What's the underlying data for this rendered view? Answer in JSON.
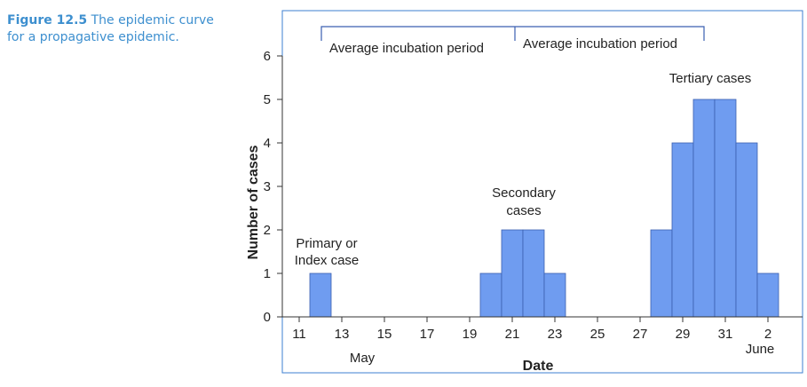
{
  "caption": {
    "label": "Figure 12.5",
    "text": "The epidemic curve for a propagative epidemic."
  },
  "colors": {
    "bar": "#6f9cf0",
    "bar_edge": "#3a5fb0",
    "frame": "#3d7fd0",
    "caption": "#3d8fcf"
  },
  "chart_data": {
    "type": "bar",
    "xlabel": "Date",
    "ylabel": "Number of cases",
    "ylim": [
      0,
      6
    ],
    "yticks": [
      0,
      1,
      2,
      3,
      4,
      5,
      6
    ],
    "xticks": [
      "11",
      "13",
      "15",
      "17",
      "19",
      "21",
      "23",
      "25",
      "27",
      "29",
      "31",
      "2"
    ],
    "month_labels": [
      "May",
      "June"
    ],
    "bars": [
      {
        "day": 12,
        "value": 1
      },
      {
        "day": 20,
        "value": 1
      },
      {
        "day": 21,
        "value": 2
      },
      {
        "day": 22,
        "value": 2
      },
      {
        "day": 23,
        "value": 1
      },
      {
        "day": 28,
        "value": 2
      },
      {
        "day": 29,
        "value": 4
      },
      {
        "day": 30,
        "value": 5
      },
      {
        "day": 31,
        "value": 5
      },
      {
        "day": 32,
        "value": 4
      },
      {
        "day": 33,
        "value": 1
      }
    ],
    "annotations": {
      "primary": [
        "Primary or",
        "Index case"
      ],
      "secondary": [
        "Secondary",
        "cases"
      ],
      "tertiary": "Tertiary cases",
      "incubation": [
        "Average incubation period",
        "Average incubation period"
      ]
    },
    "grid": false
  }
}
